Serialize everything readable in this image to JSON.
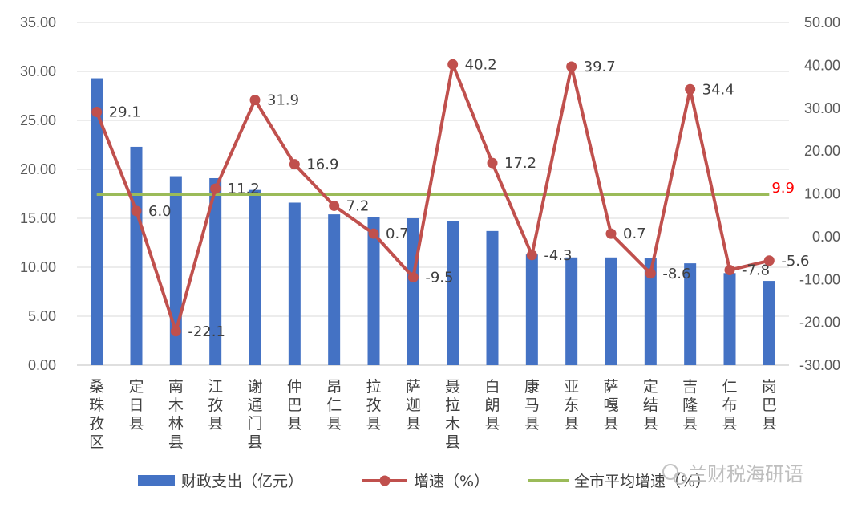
{
  "chart_data": {
    "type": "bar",
    "categories": [
      [
        "桑",
        "珠",
        "孜",
        "区"
      ],
      [
        "定",
        "日",
        "县"
      ],
      [
        "南",
        "木",
        "林",
        "县"
      ],
      [
        "江",
        "孜",
        "县"
      ],
      [
        "谢",
        "通",
        "门",
        "县"
      ],
      [
        "仲",
        "巴",
        "县"
      ],
      [
        "昂",
        "仁",
        "县"
      ],
      [
        "拉",
        "孜",
        "县"
      ],
      [
        "萨",
        "迦",
        "县"
      ],
      [
        "聂",
        "拉",
        "木",
        "县"
      ],
      [
        "白",
        "朗",
        "县"
      ],
      [
        "康",
        "马",
        "县"
      ],
      [
        "亚",
        "东",
        "县"
      ],
      [
        "萨",
        "嘎",
        "县"
      ],
      [
        "定",
        "结",
        "县"
      ],
      [
        "吉",
        "隆",
        "县"
      ],
      [
        "仁",
        "布",
        "县"
      ],
      [
        "岗",
        "巴",
        "县"
      ]
    ],
    "series": [
      {
        "name": "财政支出（亿元）",
        "type": "bar",
        "axis": "left",
        "color": "#4472c4",
        "values": [
          29.3,
          22.3,
          19.3,
          19.1,
          17.9,
          16.6,
          15.4,
          15.1,
          15.0,
          14.7,
          13.7,
          11.3,
          11.0,
          11.0,
          10.9,
          10.4,
          9.4,
          8.6
        ]
      },
      {
        "name": "增速（%）",
        "type": "line",
        "axis": "right",
        "color": "#c0504d",
        "values": [
          29.1,
          6.0,
          -22.1,
          11.2,
          31.9,
          16.9,
          7.2,
          0.7,
          -9.5,
          40.2,
          17.2,
          -4.3,
          39.7,
          0.7,
          -8.6,
          34.4,
          -7.8,
          -5.6
        ],
        "labels": [
          "29.1",
          "6.0",
          "-22.1",
          "11.2",
          "31.9",
          "16.9",
          "7.2",
          "0.7",
          "-9.5",
          "40.2",
          "17.2",
          "-4.3",
          "39.7",
          "0.7",
          "-8.6",
          "34.4",
          "-7.8",
          "-5.6"
        ]
      },
      {
        "name": "全市平均增速（%）",
        "type": "line",
        "axis": "right",
        "color": "#9bbb59",
        "value": 9.9,
        "label": "9.9",
        "label_color": "#ff0000"
      }
    ],
    "y_left": {
      "ylim": [
        0,
        35
      ],
      "ticks": [
        "0.00",
        "5.00",
        "10.00",
        "15.00",
        "20.00",
        "25.00",
        "30.00",
        "35.00"
      ]
    },
    "y_right": {
      "ylim": [
        -30,
        50
      ],
      "ticks": [
        "-30.00",
        "-20.00",
        "-10.00",
        "0.00",
        "10.00",
        "20.00",
        "30.00",
        "40.00",
        "50.00"
      ]
    },
    "grid": true,
    "legend": "bottom",
    "watermark": "兰财税海研语"
  }
}
